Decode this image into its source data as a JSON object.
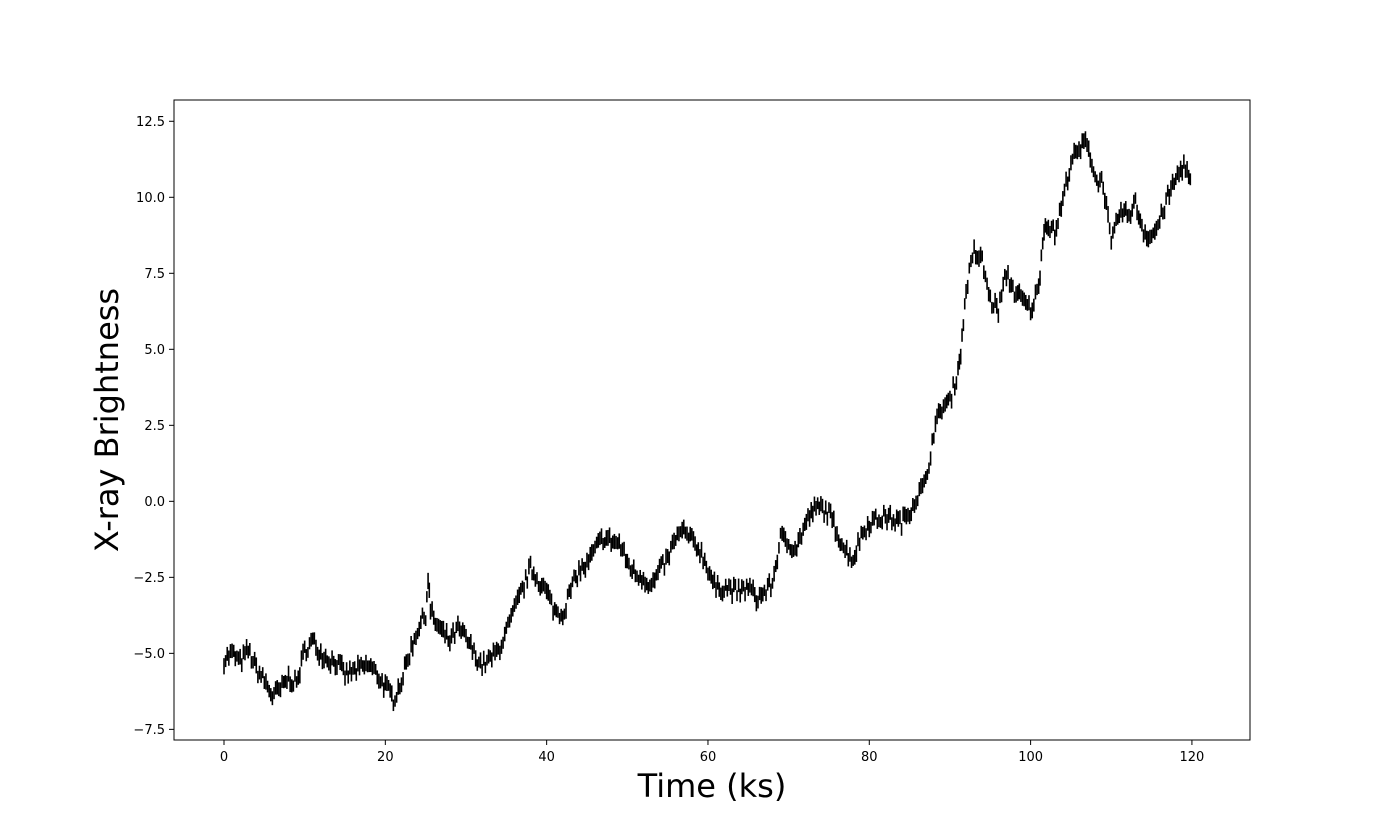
{
  "chart_data": {
    "type": "errorbar",
    "title": "",
    "xlabel": "Time (ks)",
    "ylabel": "X-ray Brightness",
    "xlim": [
      -6.2,
      127.2
    ],
    "ylim": [
      -7.85,
      13.2
    ],
    "xticks": [
      0,
      20,
      40,
      60,
      80,
      100,
      120
    ],
    "yticks": [
      -7.5,
      -5.0,
      -2.5,
      0.0,
      2.5,
      5.0,
      7.5,
      10.0,
      12.5
    ],
    "xtick_labels": [
      "0",
      "20",
      "40",
      "60",
      "80",
      "100",
      "120"
    ],
    "ytick_labels": [
      "−7.5",
      "−5.0",
      "−2.5",
      "0.0",
      "2.5",
      "5.0",
      "7.5",
      "10.0",
      "12.5"
    ],
    "grid": false,
    "legend": "none",
    "error_bar_half_height": 0.22,
    "sample_spacing": 0.2,
    "marker_color": "#000000",
    "anchors": [
      [
        0,
        -5.2
      ],
      [
        1,
        -5.0
      ],
      [
        2,
        -5.3
      ],
      [
        3,
        -4.9
      ],
      [
        4,
        -5.5
      ],
      [
        5,
        -5.9
      ],
      [
        6,
        -6.4
      ],
      [
        7,
        -6.2
      ],
      [
        8,
        -5.8
      ],
      [
        9,
        -6.0
      ],
      [
        10,
        -4.9
      ],
      [
        11,
        -4.6
      ],
      [
        12,
        -5.0
      ],
      [
        13,
        -5.2
      ],
      [
        14,
        -5.3
      ],
      [
        15,
        -5.7
      ],
      [
        16,
        -5.6
      ],
      [
        17,
        -5.5
      ],
      [
        18,
        -5.4
      ],
      [
        19,
        -5.7
      ],
      [
        20,
        -6.1
      ],
      [
        21,
        -6.5
      ],
      [
        22,
        -5.9
      ],
      [
        23,
        -5.0
      ],
      [
        24,
        -4.2
      ],
      [
        25,
        -3.7
      ],
      [
        25.3,
        -2.5
      ],
      [
        25.6,
        -3.6
      ],
      [
        26,
        -3.9
      ],
      [
        27,
        -4.3
      ],
      [
        28,
        -4.6
      ],
      [
        29,
        -4.2
      ],
      [
        30,
        -4.5
      ],
      [
        31,
        -5.0
      ],
      [
        32,
        -5.4
      ],
      [
        33,
        -5.2
      ],
      [
        34,
        -4.9
      ],
      [
        35,
        -4.3
      ],
      [
        36,
        -3.6
      ],
      [
        37,
        -2.9
      ],
      [
        38,
        -2.2
      ],
      [
        39,
        -2.6
      ],
      [
        40,
        -3.0
      ],
      [
        41,
        -3.6
      ],
      [
        42,
        -3.7
      ],
      [
        43,
        -2.9
      ],
      [
        44,
        -2.3
      ],
      [
        45,
        -2.1
      ],
      [
        46,
        -1.6
      ],
      [
        47,
        -1.2
      ],
      [
        48,
        -1.3
      ],
      [
        49,
        -1.4
      ],
      [
        50,
        -2.0
      ],
      [
        51,
        -2.4
      ],
      [
        52,
        -2.5
      ],
      [
        53,
        -2.8
      ],
      [
        54,
        -2.3
      ],
      [
        55,
        -1.9
      ],
      [
        56,
        -1.2
      ],
      [
        57,
        -1.0
      ],
      [
        58,
        -1.3
      ],
      [
        59,
        -1.6
      ],
      [
        60,
        -2.2
      ],
      [
        61,
        -2.9
      ],
      [
        62,
        -2.8
      ],
      [
        63,
        -2.9
      ],
      [
        64,
        -3.0
      ],
      [
        65,
        -2.8
      ],
      [
        66,
        -3.2
      ],
      [
        67,
        -3.0
      ],
      [
        68,
        -2.7
      ],
      [
        69,
        -1.2
      ],
      [
        70,
        -1.4
      ],
      [
        71,
        -1.5
      ],
      [
        72,
        -0.8
      ],
      [
        73,
        -0.3
      ],
      [
        74,
        -0.2
      ],
      [
        75,
        -0.4
      ],
      [
        76,
        -1.0
      ],
      [
        77,
        -1.6
      ],
      [
        78,
        -1.9
      ],
      [
        79,
        -1.1
      ],
      [
        80,
        -0.7
      ],
      [
        81,
        -0.6
      ],
      [
        82,
        -0.5
      ],
      [
        83,
        -0.6
      ],
      [
        84,
        -0.7
      ],
      [
        85,
        -0.3
      ],
      [
        86,
        0.2
      ],
      [
        87,
        0.6
      ],
      [
        88,
        2.3
      ],
      [
        89,
        3.1
      ],
      [
        90,
        3.3
      ],
      [
        91,
        4.3
      ],
      [
        91.5,
        5.3
      ],
      [
        92,
        7.0
      ],
      [
        93,
        8.2
      ],
      [
        94,
        7.9
      ],
      [
        95,
        6.6
      ],
      [
        96,
        6.3
      ],
      [
        97,
        7.5
      ],
      [
        98,
        6.9
      ],
      [
        99,
        6.6
      ],
      [
        100,
        6.3
      ],
      [
        101,
        7.0
      ],
      [
        101.5,
        8.7
      ],
      [
        102,
        9.2
      ],
      [
        103,
        8.8
      ],
      [
        104,
        9.9
      ],
      [
        105,
        11.2
      ],
      [
        106,
        11.5
      ],
      [
        107,
        11.9
      ],
      [
        108,
        10.6
      ],
      [
        109,
        10.5
      ],
      [
        110,
        8.4
      ],
      [
        111,
        9.5
      ],
      [
        112,
        9.4
      ],
      [
        113,
        9.8
      ],
      [
        114,
        8.9
      ],
      [
        115,
        8.7
      ],
      [
        116,
        9.2
      ],
      [
        117,
        10.0
      ],
      [
        118,
        10.6
      ],
      [
        119,
        11.1
      ],
      [
        120,
        10.3
      ]
    ]
  }
}
